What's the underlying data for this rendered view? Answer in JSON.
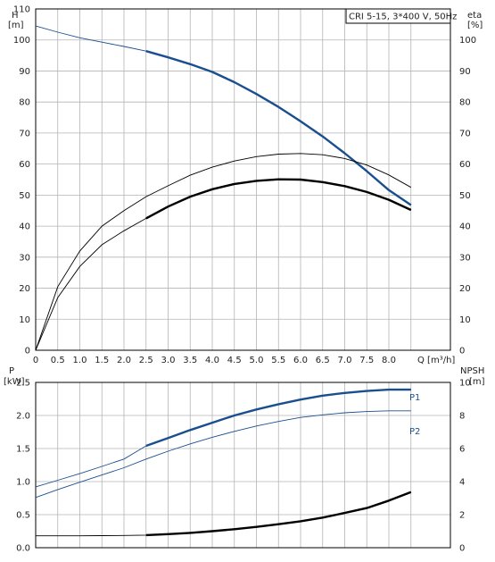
{
  "chart_data": [
    {
      "type": "line",
      "title": "CRI 5-15, 3*400 V, 50Hz",
      "xlabel": "Q [m³/h]",
      "ylabel_left": "H",
      "ylabel_left_unit": "[m]",
      "ylabel_right": "eta",
      "ylabel_right_unit": "[%]",
      "xlim": [
        0,
        8.5
      ],
      "ylim_left": [
        0,
        110
      ],
      "ylim_right": [
        0,
        110
      ],
      "grid": true,
      "x_ticks": [
        "0",
        "0.5",
        "1.0",
        "1.5",
        "2.0",
        "2.5",
        "3.0",
        "3.5",
        "4.0",
        "4.5",
        "5.0",
        "5.5",
        "6.0",
        "6.5",
        "7.0",
        "7.5",
        "8.0"
      ],
      "y_ticks_left": [
        "0",
        "10",
        "20",
        "30",
        "40",
        "50",
        "60",
        "70",
        "80",
        "90",
        "100",
        "110"
      ],
      "y_ticks_right": [
        "0",
        "10",
        "20",
        "30",
        "40",
        "50",
        "60",
        "70",
        "80",
        "90",
        "100"
      ],
      "series": [
        {
          "color": "#1a4f8f",
          "axis": "left",
          "x": [
            0,
            0.5,
            1.0,
            1.5,
            2.0,
            2.5,
            3.0,
            3.5,
            4.0,
            4.5,
            5.0,
            5.5,
            6.0,
            6.5,
            7.0,
            7.5,
            8.0,
            8.5
          ],
          "y": [
            104.5,
            102.5,
            100.7,
            99.3,
            97.9,
            96.4,
            94.4,
            92.2,
            89.7,
            86.4,
            82.6,
            78.4,
            73.8,
            68.9,
            63.5,
            57.7,
            51.6,
            46.8
          ],
          "bold_from": 2.5
        },
        {
          "color": "#000000",
          "axis": "right",
          "x": [
            0,
            0.5,
            1.0,
            1.5,
            2.0,
            2.5,
            3.0,
            3.5,
            4.0,
            4.5,
            5.0,
            5.5,
            6.0,
            6.5,
            7.0,
            7.5,
            8.0,
            8.5
          ],
          "y": [
            0,
            20.5,
            32.0,
            40.0,
            45.0,
            49.5,
            53.0,
            56.4,
            59.0,
            61.0,
            62.4,
            63.2,
            63.4,
            63.0,
            61.8,
            59.7,
            56.5,
            52.5
          ],
          "bold_from": 99
        },
        {
          "color": "#000000",
          "axis": "right",
          "x": [
            0,
            0.5,
            1.0,
            1.5,
            2.0,
            2.5,
            3.0,
            3.5,
            4.0,
            4.5,
            5.0,
            5.5,
            6.0,
            6.5,
            7.0,
            7.5,
            8.0,
            8.5
          ],
          "y": [
            0,
            17.0,
            27.0,
            34.0,
            38.5,
            42.5,
            46.3,
            49.5,
            51.9,
            53.6,
            54.6,
            55.1,
            55.0,
            54.2,
            52.9,
            51.0,
            48.5,
            45.2
          ],
          "bold_from": 2.5
        }
      ]
    },
    {
      "type": "line",
      "title": "",
      "xlabel": "",
      "ylabel_left": "P",
      "ylabel_left_unit": "[kW]",
      "ylabel_right": "NPSH",
      "ylabel_right_unit": "[m]",
      "xlim": [
        0,
        8.5
      ],
      "ylim_left": [
        0,
        2.5
      ],
      "ylim_right": [
        0,
        10
      ],
      "grid": true,
      "y_ticks_left": [
        "0.0",
        "0.5",
        "1.0",
        "1.5",
        "2.0",
        "2.5"
      ],
      "y_ticks_right": [
        "0",
        "2",
        "4",
        "6",
        "8",
        "10"
      ],
      "series": [
        {
          "name": "P1",
          "color": "#1a4f8f",
          "axis": "left",
          "x": [
            0,
            0.5,
            1.0,
            1.5,
            2.0,
            2.5,
            3.0,
            3.5,
            4.0,
            4.5,
            5.0,
            5.5,
            6.0,
            6.5,
            7.0,
            7.5,
            8.0,
            8.5
          ],
          "y": [
            0.92,
            1.02,
            1.12,
            1.23,
            1.34,
            1.54,
            1.66,
            1.78,
            1.89,
            2.0,
            2.09,
            2.17,
            2.24,
            2.3,
            2.34,
            2.37,
            2.39,
            2.39
          ],
          "bold_from": 2.5
        },
        {
          "name": "P2",
          "color": "#1a4f8f",
          "axis": "left",
          "x": [
            0,
            0.5,
            1.0,
            1.5,
            2.0,
            2.5,
            3.0,
            3.5,
            4.0,
            4.5,
            5.0,
            5.5,
            6.0,
            6.5,
            7.0,
            7.5,
            8.0,
            8.5
          ],
          "y": [
            0.76,
            0.88,
            0.99,
            1.1,
            1.21,
            1.34,
            1.46,
            1.57,
            1.67,
            1.76,
            1.84,
            1.91,
            1.97,
            2.01,
            2.04,
            2.06,
            2.07,
            2.07
          ],
          "bold_from": 99
        },
        {
          "color": "#000000",
          "axis": "right",
          "x": [
            0,
            0.5,
            1.0,
            1.5,
            2.0,
            2.5,
            3.0,
            3.5,
            4.0,
            4.5,
            5.0,
            5.5,
            6.0,
            6.5,
            7.0,
            7.5,
            8.0,
            8.5
          ],
          "y": [
            0.72,
            0.72,
            0.72,
            0.73,
            0.74,
            0.76,
            0.82,
            0.9,
            1.0,
            1.12,
            1.26,
            1.42,
            1.6,
            1.82,
            2.1,
            2.4,
            2.85,
            3.36
          ],
          "bold_from": 2.5
        }
      ]
    }
  ]
}
